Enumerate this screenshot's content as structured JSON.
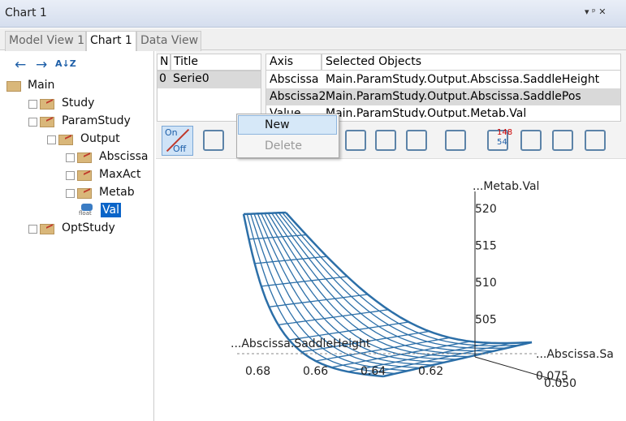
{
  "window": {
    "title": "Chart 1"
  },
  "tabs": [
    "Model View 1",
    "Chart 1",
    "Data View"
  ],
  "tree": [
    "Main",
    "Study",
    "ParamStudy",
    "Output",
    "Abscissa",
    "MaxAct",
    "Metab",
    "Val",
    "OptStudy"
  ],
  "tree_icon_label": "float",
  "series_table": {
    "columns": [
      "N",
      "Title"
    ],
    "rows": [
      [
        "0",
        "Serie0"
      ]
    ]
  },
  "axis_table": {
    "columns": [
      "Axis",
      "Selected Objects"
    ],
    "rows": [
      [
        "Abscissa",
        "Main.ParamStudy.Output.Abscissa.SaddleHeight"
      ],
      [
        "Abscissa2",
        "Main.ParamStudy.Output.Abscissa.SaddlePos"
      ],
      [
        "Value",
        "Main.ParamStudy.Output.Metab.Val"
      ]
    ]
  },
  "context_menu": [
    "New",
    "Delete"
  ],
  "toolbar": {
    "on": "On",
    "off": "Off",
    "top_count": "148",
    "bottom_count": "54"
  },
  "plot": {
    "z_label": "...Metab.Val",
    "z_ticks": [
      "520",
      "515",
      "510",
      "505"
    ],
    "x_label": "...Abscissa.SaddleHeight",
    "x_ticks": [
      "0.68",
      "0.66",
      "0.64",
      "0.62"
    ],
    "y_label": "...Abscissa.Sa",
    "y_ticks": [
      "0.075",
      "0.050"
    ]
  }
}
